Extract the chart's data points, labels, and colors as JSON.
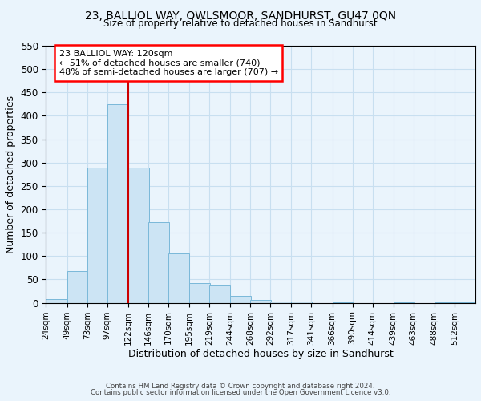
{
  "title": "23, BALLIOL WAY, OWLSMOOR, SANDHURST, GU47 0QN",
  "subtitle": "Size of property relative to detached houses in Sandhurst",
  "bar_values": [
    8,
    68,
    290,
    425,
    290,
    172,
    105,
    43,
    38,
    15,
    7,
    2,
    2,
    0,
    1,
    0,
    0,
    1,
    0,
    1,
    1
  ],
  "bin_labels": [
    "24sqm",
    "49sqm",
    "73sqm",
    "97sqm",
    "122sqm",
    "146sqm",
    "170sqm",
    "195sqm",
    "219sqm",
    "244sqm",
    "268sqm",
    "292sqm",
    "317sqm",
    "341sqm",
    "366sqm",
    "390sqm",
    "414sqm",
    "439sqm",
    "463sqm",
    "488sqm",
    "512sqm"
  ],
  "bin_edges": [
    24,
    49,
    73,
    97,
    122,
    146,
    170,
    195,
    219,
    244,
    268,
    292,
    317,
    341,
    366,
    390,
    414,
    439,
    463,
    488,
    512
  ],
  "bar_color": "#cce4f4",
  "bar_edge_color": "#7ab8d9",
  "vline_x": 122,
  "vline_color": "#cc0000",
  "xlabel": "Distribution of detached houses by size in Sandhurst",
  "ylabel": "Number of detached properties",
  "ylim": [
    0,
    550
  ],
  "yticks": [
    0,
    50,
    100,
    150,
    200,
    250,
    300,
    350,
    400,
    450,
    500,
    550
  ],
  "annotation_title": "23 BALLIOL WAY: 120sqm",
  "annotation_line1": "← 51% of detached houses are smaller (740)",
  "annotation_line2": "48% of semi-detached houses are larger (707) →",
  "footer1": "Contains HM Land Registry data © Crown copyright and database right 2024.",
  "footer2": "Contains public sector information licensed under the Open Government Licence v3.0.",
  "grid_color": "#c8dff0",
  "background_color": "#eaf4fc"
}
